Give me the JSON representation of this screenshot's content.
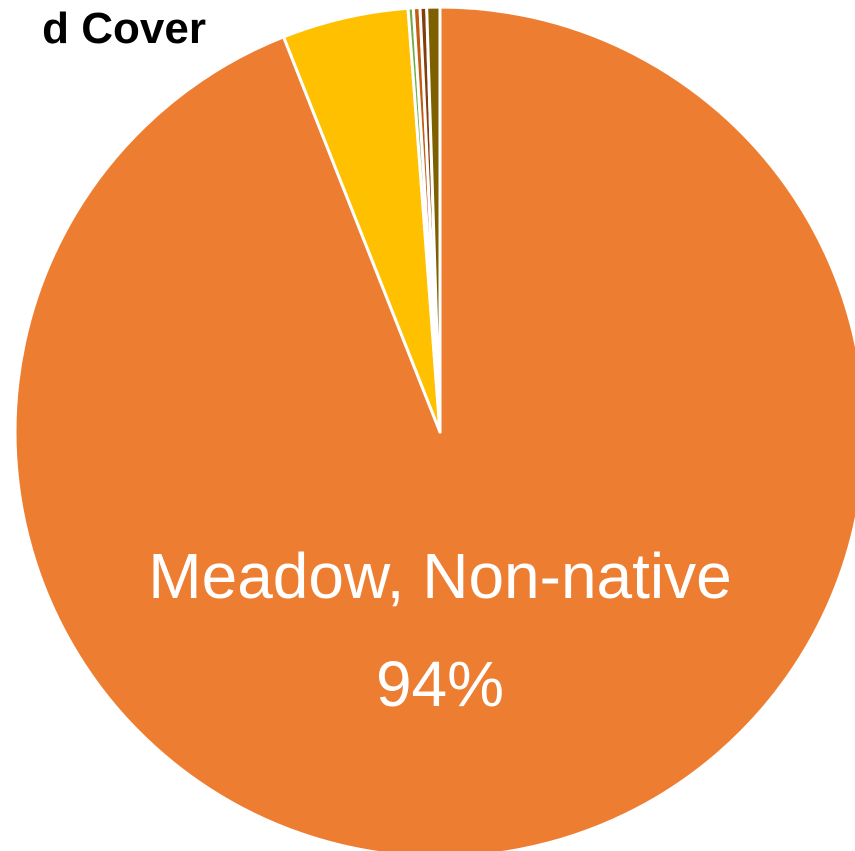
{
  "chart_data": {
    "type": "pie",
    "title": "d Cover",
    "slices": [
      {
        "name": "Meadow, Non-native",
        "value": 94,
        "color": "#ED7D31"
      },
      {
        "name": "",
        "value": 4.8,
        "color": "#FFC000"
      },
      {
        "name": "",
        "value": 0.2,
        "color": "#70AD47"
      },
      {
        "name": "",
        "value": 0.25,
        "color": "#C55A11"
      },
      {
        "name": "",
        "value": 0.25,
        "color": "#843C0C"
      },
      {
        "name": "",
        "value": 0.5,
        "color": "#7F6000"
      }
    ],
    "data_labels": [
      {
        "slice": 0,
        "line1": "Meadow, Non-native",
        "line2": "94%"
      }
    ]
  }
}
